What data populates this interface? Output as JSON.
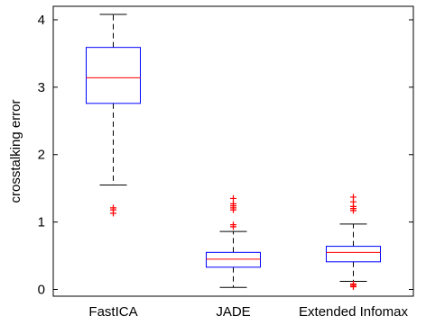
{
  "chart_data": {
    "type": "boxplot",
    "title": "",
    "xlabel": "",
    "ylabel": "crosstalking error",
    "ylim": [
      -0.1,
      4.2
    ],
    "yticks": [
      0,
      1,
      2,
      3,
      4
    ],
    "grid": false,
    "categories": [
      "FastICA",
      "JADE",
      "Extended Infomax"
    ],
    "colors": {
      "box": "#0000ff",
      "median": "#ff0000",
      "whisker": "#000000",
      "outlier": "#ff0000"
    },
    "series": [
      {
        "category": "FastICA",
        "whisker_low": 1.55,
        "q1": 2.76,
        "median": 3.14,
        "q3": 3.59,
        "whisker_high": 4.08,
        "outliers": [
          1.13,
          1.18,
          1.21
        ]
      },
      {
        "category": "JADE",
        "whisker_low": 0.03,
        "q1": 0.33,
        "median": 0.45,
        "q3": 0.55,
        "whisker_high": 0.86,
        "outliers": [
          0.93,
          0.96,
          1.18,
          1.21,
          1.24,
          1.27,
          1.35
        ]
      },
      {
        "category": "Extended Infomax",
        "whisker_low": 0.12,
        "q1": 0.41,
        "median": 0.55,
        "q3": 0.64,
        "whisker_high": 0.97,
        "outliers": [
          0.04,
          0.06,
          0.08,
          1.17,
          1.2,
          1.23,
          1.3,
          1.37
        ]
      }
    ]
  }
}
